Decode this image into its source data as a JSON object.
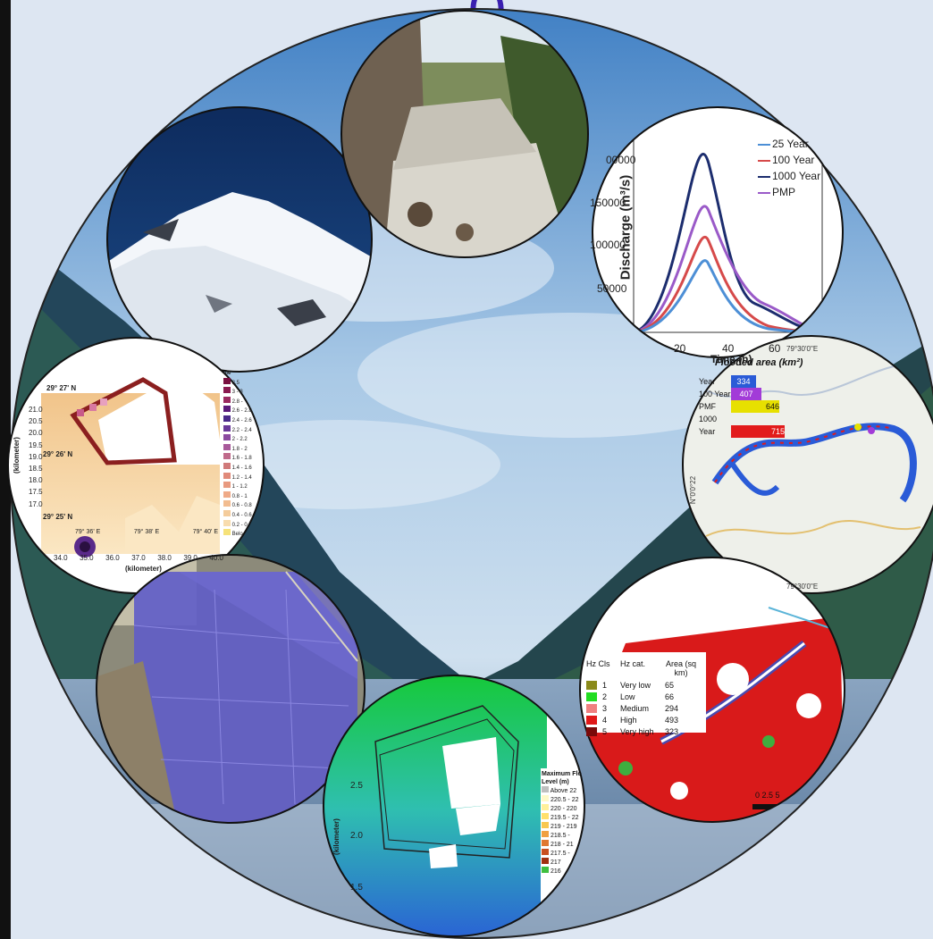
{
  "page": {
    "title_fragment": "(         )",
    "accent": "#3a1fb0",
    "background": "#dde6f2"
  },
  "hydrograph": {
    "ylabel": "Discharge (m³/s)",
    "xlabel": "Time (h)",
    "yticks": [
      "50000",
      "100000",
      "150000",
      "00000"
    ],
    "xticks": [
      "20",
      "40",
      "60"
    ],
    "legend": [
      {
        "name": "25 Year",
        "color": "#4d8fd6"
      },
      {
        "name": "100 Year",
        "color": "#d64a4a"
      },
      {
        "name": "1000 Year",
        "color": "#1c2d6e"
      },
      {
        "name": "PMP",
        "color": "#9a5ac8"
      }
    ]
  },
  "flooded_area": {
    "title": "Flooded area (km²)",
    "bars": [
      {
        "label": "Year",
        "value": "334",
        "color": "#2a5bd7"
      },
      {
        "label": "100 Year",
        "value": "407",
        "color": "#a23bd8"
      },
      {
        "label": "PMF",
        "value": "646",
        "color": "#e7e000"
      },
      {
        "label": "1000 Year",
        "value": "715",
        "color": "#e21b1b"
      }
    ],
    "coord_top": "79°30'0\"E",
    "coord_bottom": "79°30'0\"E",
    "coord_left": "N\"0'0°22"
  },
  "contour": {
    "lat_labels": [
      "29° 27' N",
      "29° 26' N",
      "29° 25' N"
    ],
    "lon_labels": [
      "79° 36' E",
      "79° 38' E",
      "79° 40' E"
    ],
    "yaxis": "(kilometer)",
    "yticks": [
      "21.0",
      "20.5",
      "20.0",
      "19.5",
      "19.0",
      "18.5",
      "18.0",
      "17.5",
      "17.0"
    ],
    "xticks": [
      "34.0",
      "35.0",
      "36.0",
      "37.0",
      "38.0",
      "39.0",
      "40.0"
    ],
    "xlabel": "(kilometer)",
    "legend_title": "ele",
    "legend_items": [
      "3.5",
      "3 - 3",
      "2.8 -",
      "2.6 - 2.8",
      "2.4 - 2.6",
      "2.2 - 2.4",
      "2 - 2.2",
      "1.8 - 2",
      "1.6 - 1.8",
      "1.4 - 1.6",
      "1.2 - 1.4",
      "1 - 1.2",
      "0.8 - 1",
      "0.6 - 0.8",
      "0.4 - 0.6",
      "0.2 - 0.",
      "Belo"
    ]
  },
  "hazard": {
    "headers": [
      "Hz Cls",
      "Hz cat.",
      "Area (sq km)"
    ],
    "rows": [
      {
        "cls": "1",
        "cat": "Very low",
        "area": "65",
        "color": "#8a8a1a"
      },
      {
        "cls": "2",
        "cat": "Low",
        "area": "66",
        "color": "#22dd22"
      },
      {
        "cls": "3",
        "cat": "Medium",
        "area": "294",
        "color": "#f08080"
      },
      {
        "cls": "4",
        "cat": "High",
        "area": "493",
        "color": "#e01818"
      },
      {
        "cls": "5",
        "cat": "Very high",
        "area": "323",
        "color": "#7a0a0a"
      }
    ],
    "scale": "0  2.5  5"
  },
  "flood_level": {
    "legend_title": "Maximum Flo Level (m)",
    "legend_items": [
      "Above 22",
      "220.5 - 22",
      "220 - 220",
      "219.5 - 22",
      "219 - 219",
      "218.5 -",
      "218 - 21",
      "217.5 -",
      "217",
      "216"
    ],
    "yaxis": "(kilometer)",
    "yticks": [
      "2.5",
      "2.0",
      "1.5"
    ]
  }
}
